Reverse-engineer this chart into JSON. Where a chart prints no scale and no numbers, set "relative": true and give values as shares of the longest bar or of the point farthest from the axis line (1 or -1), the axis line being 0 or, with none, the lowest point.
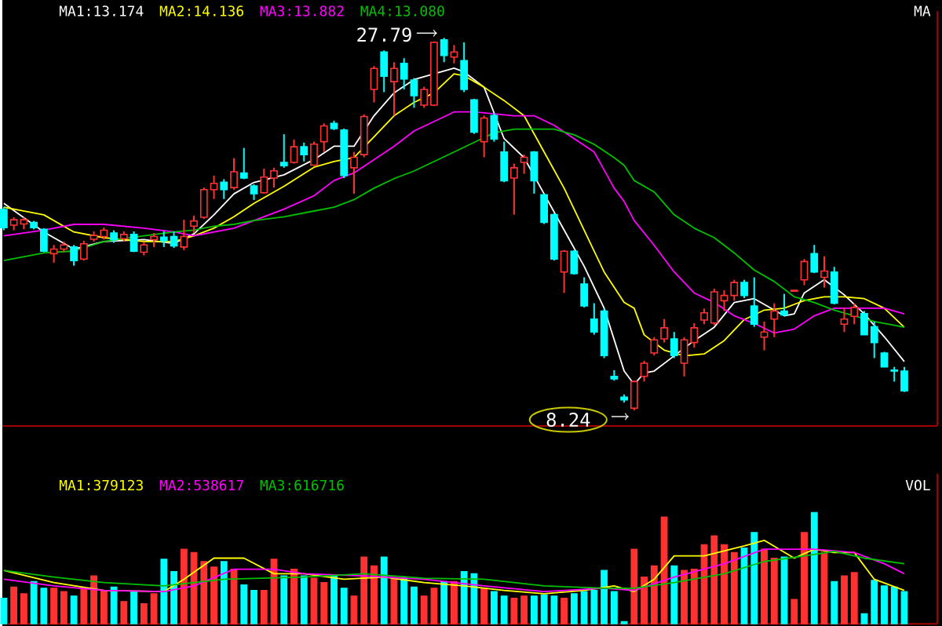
{
  "chart_data": [
    {
      "type": "candlestick",
      "legend": "top left",
      "categories": [
        null,
        null,
        null,
        null,
        null,
        null,
        null,
        null,
        null,
        null,
        null,
        null,
        null,
        null,
        null,
        null,
        null,
        null,
        null,
        null,
        null,
        null,
        null,
        null,
        null,
        null,
        null,
        null,
        null,
        null,
        null,
        null,
        null,
        null,
        null,
        null,
        null,
        null,
        null,
        null,
        null,
        null,
        null,
        null,
        null,
        null,
        null,
        null,
        null,
        null,
        null,
        null,
        null,
        null,
        null,
        null,
        null,
        null,
        null,
        null,
        null,
        null,
        null,
        null,
        null,
        null,
        null,
        null,
        null,
        null,
        null,
        null,
        null,
        null,
        null,
        null,
        null,
        null,
        null,
        null,
        null,
        null,
        null,
        null,
        null,
        null,
        null,
        null,
        null,
        null,
        null
      ],
      "ohlc": [
        [
          18.78,
          18.92,
          17.69,
          17.83
        ],
        [
          17.96,
          18.37,
          17.69,
          18.24
        ],
        [
          18.02,
          18.37,
          17.74,
          18.24
        ],
        [
          18.1,
          18.18,
          17.74,
          17.83
        ],
        [
          17.74,
          17.8,
          16.54,
          16.59
        ],
        [
          16.46,
          16.92,
          15.99,
          16.7
        ],
        [
          16.7,
          17.09,
          16.54,
          16.92
        ],
        [
          16.81,
          16.92,
          15.83,
          16.1
        ],
        [
          16.18,
          17.14,
          16.1,
          16.98
        ],
        [
          17.22,
          17.63,
          17.09,
          17.42
        ],
        [
          17.36,
          17.83,
          17.2,
          17.69
        ],
        [
          17.55,
          17.69,
          17.03,
          17.2
        ],
        [
          17.25,
          17.63,
          17.09,
          17.47
        ],
        [
          17.47,
          17.63,
          16.54,
          16.59
        ],
        [
          16.54,
          17.09,
          16.37,
          16.92
        ],
        [
          17.2,
          17.55,
          16.81,
          17.36
        ],
        [
          17.33,
          17.63,
          16.81,
          17.14
        ],
        [
          17.36,
          17.63,
          16.76,
          16.87
        ],
        [
          16.81,
          18.24,
          16.65,
          17.36
        ],
        [
          17.91,
          18.46,
          17.55,
          18.18
        ],
        [
          18.37,
          19.93,
          18.29,
          19.82
        ],
        [
          19.82,
          20.56,
          19.33,
          20.15
        ],
        [
          20.21,
          20.37,
          19.33,
          19.82
        ],
        [
          19.93,
          21.47,
          19.82,
          20.76
        ],
        [
          20.7,
          22.01,
          20.37,
          20.43
        ],
        [
          20.02,
          20.1,
          19.28,
          19.61
        ],
        [
          19.66,
          20.92,
          19.61,
          20.48
        ],
        [
          20.43,
          20.97,
          19.93,
          20.81
        ],
        [
          21.25,
          22.73,
          20.97,
          21.08
        ],
        [
          21.25,
          22.45,
          21.19,
          22.07
        ],
        [
          22.07,
          22.29,
          21.3,
          21.66
        ],
        [
          21.11,
          22.34,
          21.08,
          22.21
        ],
        [
          22.34,
          23.3,
          21.8,
          23.17
        ],
        [
          23.3,
          23.44,
          22.95,
          23.03
        ],
        [
          22.95,
          23.03,
          20.43,
          20.56
        ],
        [
          20.97,
          21.8,
          19.61,
          21.52
        ],
        [
          21.66,
          23.77,
          21.52,
          23.66
        ],
        [
          25.08,
          26.31,
          24.4,
          26.18
        ],
        [
          27.05,
          27.13,
          24.94,
          25.77
        ],
        [
          25.49,
          26.51,
          23.71,
          26.18
        ],
        [
          26.45,
          26.72,
          25.08,
          25.63
        ],
        [
          25.57,
          25.68,
          24.12,
          24.75
        ],
        [
          24.26,
          25.22,
          24.12,
          25.08
        ],
        [
          24.26,
          27.6,
          24.21,
          27.55
        ],
        [
          27.68,
          27.79,
          26.51,
          26.86
        ],
        [
          26.78,
          27.41,
          26.45,
          27.05
        ],
        [
          26.59,
          27.55,
          24.94,
          25.08
        ],
        [
          24.53,
          24.59,
          22.75,
          22.84
        ],
        [
          22.34,
          23.71,
          21.52,
          23.58
        ],
        [
          23.71,
          23.85,
          22.34,
          22.48
        ],
        [
          21.8,
          22.34,
          20.21,
          20.29
        ],
        [
          20.43,
          21.19,
          18.51,
          20.97
        ],
        [
          21.25,
          21.66,
          20.65,
          21.52
        ],
        [
          21.8,
          21.85,
          19.61,
          20.29
        ],
        [
          19.55,
          19.61,
          18.02,
          18.1
        ],
        [
          18.51,
          18.57,
          16.1,
          16.18
        ],
        [
          15.5,
          16.65,
          14.4,
          16.59
        ],
        [
          16.59,
          16.65,
          15.36,
          15.42
        ],
        [
          14.87,
          15.22,
          13.64,
          13.72
        ],
        [
          13.03,
          13.86,
          12.21,
          12.35
        ],
        [
          13.45,
          13.58,
          10.98,
          11.12
        ],
        [
          10.02,
          10.35,
          9.8,
          9.89
        ],
        [
          8.93,
          9.07,
          8.65,
          8.79
        ],
        [
          8.35,
          9.8,
          8.24,
          9.75
        ],
        [
          10.02,
          10.84,
          9.75,
          10.71
        ],
        [
          11.25,
          12.08,
          11.12,
          11.94
        ],
        [
          11.99,
          13.03,
          11.8,
          12.57
        ],
        [
          11.99,
          12.35,
          10.98,
          11.12
        ],
        [
          10.71,
          12.08,
          10.02,
          11.94
        ],
        [
          11.8,
          12.82,
          11.53,
          12.57
        ],
        [
          12.98,
          13.58,
          12.76,
          13.36
        ],
        [
          12.82,
          14.62,
          12.71,
          14.46
        ],
        [
          13.99,
          14.54,
          13.45,
          14.27
        ],
        [
          14.27,
          15.09,
          13.99,
          14.95
        ],
        [
          14.95,
          15.09,
          14.13,
          14.27
        ],
        [
          13.72,
          15.22,
          12.62,
          12.76
        ],
        [
          12.08,
          12.9,
          11.39,
          12.35
        ],
        [
          13.03,
          13.86,
          12.08,
          13.45
        ],
        [
          13.45,
          14.35,
          13.17,
          13.25
        ],
        [
          14.49,
          14.56,
          14.47,
          14.54
        ],
        [
          15.09,
          16.18,
          14.81,
          16.05
        ],
        [
          16.46,
          16.92,
          15.44,
          15.5
        ],
        [
          15.22,
          16.32,
          14.68,
          15.55
        ],
        [
          15.5,
          15.77,
          13.8,
          13.86
        ],
        [
          12.76,
          13.64,
          12.35,
          13.03
        ],
        [
          13.17,
          13.86,
          12.76,
          13.64
        ],
        [
          13.31,
          13.45,
          12.21,
          12.21
        ],
        [
          12.62,
          12.9,
          10.98,
          11.8
        ],
        [
          11.25,
          11.31,
          10.52,
          10.52
        ],
        [
          10.35,
          10.52,
          9.75,
          10.3
        ],
        [
          10.3,
          10.52,
          9.2,
          9.26
        ]
      ],
      "colors": [
        "#00ffff",
        "#ff3232",
        "#ff3232",
        "#00ffff",
        "#00ffff",
        "#ff3232",
        "#ff3232",
        "#00ffff",
        "#ff3232",
        "#ff3232",
        "#ff3232",
        "#00ffff",
        "#ff3232",
        "#00ffff",
        "#ff3232",
        "#ff3232",
        "#00ffff",
        "#00ffff",
        "#ff3232",
        "#ff3232",
        "#ff3232",
        "#ff3232",
        "#00ffff",
        "#ff3232",
        "#00ffff",
        "#00ffff",
        "#ff3232",
        "#ff3232",
        "#00ffff",
        "#ff3232",
        "#00ffff",
        "#ff3232",
        "#ff3232",
        "#00ffff",
        "#00ffff",
        "#ff3232",
        "#ff3232",
        "#ff3232",
        "#00ffff",
        "#ff3232",
        "#00ffff",
        "#00ffff",
        "#ff3232",
        "#ff3232",
        "#00ffff",
        "#ff3232",
        "#00ffff",
        "#00ffff",
        "#ff3232",
        "#00ffff",
        "#00ffff",
        "#ff3232",
        "#ff3232",
        "#00ffff",
        "#00ffff",
        "#00ffff",
        "#ff3232",
        "#00ffff",
        "#00ffff",
        "#00ffff",
        "#00ffff",
        "#00ffff",
        "#00ffff",
        "#ff3232",
        "#ff3232",
        "#ff3232",
        "#ff3232",
        "#00ffff",
        "#ff3232",
        "#ff3232",
        "#ff3232",
        "#ff3232",
        "#ff3232",
        "#ff3232",
        "#00ffff",
        "#00ffff",
        "#ff3232",
        "#ff3232",
        "#00ffff",
        "#ff3232",
        "#ff3232",
        "#00ffff",
        "#ff3232",
        "#00ffff",
        "#ff3232",
        "#ff3232",
        "#00ffff",
        "#00ffff",
        "#00ffff",
        "#00ffff",
        "#00ffff"
      ],
      "series": [
        {
          "type": "line",
          "name": "MA1:13.174",
          "color": "#ffffff",
          "values": [
            19.1,
            null,
            null,
            null,
            17.6,
            null,
            null,
            16.7,
            null,
            null,
            17.1,
            null,
            null,
            null,
            17.2,
            null,
            null,
            17.0,
            null,
            17.5,
            null,
            18.5,
            null,
            19.6,
            null,
            20.2,
            null,
            null,
            20.6,
            null,
            null,
            21.4,
            null,
            22.1,
            null,
            22.1,
            null,
            23.7,
            null,
            24.9,
            null,
            25.6,
            null,
            25.9,
            null,
            26.2,
            26.0,
            null,
            25.2,
            null,
            22.5,
            null,
            21.5,
            null,
            19.6,
            null,
            17.7,
            null,
            15.8,
            null,
            13.6,
            null,
            10.3,
            9.6,
            10.2,
            10.3,
            null,
            11.1,
            null,
            11.9,
            null,
            12.6,
            null,
            13.9,
            null,
            14.1,
            null,
            13.5,
            13.2,
            13.3,
            14.4,
            null,
            15.1,
            null,
            14.3,
            null,
            13.3,
            null,
            12.1,
            null,
            10.8
          ]
        },
        {
          "type": "line",
          "name": "MA2:14.136",
          "color": "#ffff00",
          "values": [
            18.9,
            null,
            null,
            null,
            18.5,
            null,
            null,
            17.6,
            null,
            null,
            17.3,
            null,
            null,
            null,
            17.1,
            null,
            null,
            17.1,
            null,
            17.4,
            null,
            17.8,
            null,
            18.4,
            null,
            19.1,
            null,
            null,
            20.0,
            null,
            null,
            21.0,
            null,
            21.3,
            null,
            21.5,
            null,
            22.6,
            null,
            23.7,
            null,
            24.4,
            null,
            24.9,
            null,
            25.9,
            25.8,
            null,
            25.2,
            null,
            24.5,
            null,
            23.7,
            null,
            21.8,
            null,
            19.9,
            null,
            17.7,
            null,
            15.5,
            null,
            13.9,
            13.6,
            12.2,
            null,
            11.4,
            null,
            11.1,
            null,
            11.2,
            null,
            11.9,
            null,
            13.0,
            null,
            13.5,
            null,
            13.6,
            null,
            14.0,
            null,
            14.2,
            null,
            14.2,
            null,
            14.1,
            null,
            13.6,
            null,
            12.6
          ]
        },
        {
          "type": "line",
          "name": "MA3:13.882",
          "color": "#ff00ff",
          "values": [
            17.4,
            null,
            null,
            null,
            17.7,
            null,
            null,
            18.0,
            null,
            null,
            18.0,
            null,
            null,
            null,
            17.8,
            null,
            null,
            17.6,
            null,
            17.4,
            null,
            17.6,
            null,
            17.8,
            null,
            18.2,
            null,
            null,
            18.8,
            null,
            null,
            19.5,
            null,
            20.3,
            null,
            20.7,
            null,
            21.4,
            null,
            22.1,
            null,
            22.9,
            null,
            23.4,
            null,
            23.9,
            null,
            23.9,
            null,
            23.8,
            null,
            23.7,
            null,
            23.7,
            null,
            23.2,
            null,
            22.5,
            null,
            21.8,
            null,
            19.9,
            19.2,
            18.2,
            null,
            16.9,
            null,
            15.5,
            null,
            14.4,
            null,
            13.9,
            null,
            13.2,
            null,
            12.8,
            null,
            12.3,
            null,
            12.5,
            null,
            13.2,
            null,
            13.6,
            null,
            13.6,
            null,
            13.6,
            13.6,
            null,
            13.3
          ]
        },
        {
          "type": "line",
          "name": "MA4:13.080",
          "color": "#00c000",
          "values": [
            16.1,
            null,
            null,
            null,
            16.5,
            null,
            null,
            16.6,
            null,
            null,
            17.1,
            null,
            null,
            null,
            17.4,
            null,
            null,
            17.6,
            null,
            17.7,
            null,
            17.9,
            null,
            18.0,
            null,
            18.2,
            null,
            null,
            18.4,
            null,
            null,
            18.7,
            null,
            18.9,
            null,
            19.3,
            null,
            19.9,
            null,
            20.4,
            null,
            20.8,
            null,
            21.3,
            null,
            21.8,
            null,
            22.3,
            null,
            22.8,
            null,
            23.0,
            null,
            23.0,
            null,
            23.0,
            null,
            22.7,
            null,
            22.2,
            null,
            21.5,
            21.1,
            20.3,
            null,
            19.7,
            null,
            18.5,
            null,
            17.8,
            null,
            17.3,
            null,
            16.5,
            null,
            15.6,
            null,
            15.0,
            null,
            14.2,
            null,
            13.9,
            null,
            13.5,
            null,
            13.2,
            null,
            12.9,
            null,
            12.7,
            12.6
          ]
        }
      ],
      "annotations": [
        "27.79",
        "8.24",
        "MA"
      ]
    },
    {
      "type": "bar",
      "relative": true,
      "legend": "top left",
      "categories": [
        null,
        null,
        null,
        null,
        null,
        null,
        null,
        null,
        null,
        null,
        null,
        null,
        null,
        null,
        null,
        null,
        null,
        null,
        null,
        null,
        null,
        null,
        null,
        null,
        null,
        null,
        null,
        null,
        null,
        null,
        null,
        null,
        null,
        null,
        null,
        null,
        null,
        null,
        null,
        null,
        null,
        null,
        null,
        null,
        null,
        null,
        null,
        null,
        null,
        null,
        null,
        null,
        null,
        null,
        null,
        null,
        null,
        null,
        null,
        null,
        null,
        null,
        null,
        null,
        null,
        null,
        null,
        null,
        null,
        null,
        null,
        null,
        null,
        null,
        null,
        null,
        null,
        null,
        null,
        null,
        null,
        null,
        null,
        null,
        null,
        null,
        null,
        null,
        null,
        null,
        null
      ],
      "series": [
        {
          "type": "bar",
          "values": [
            0.23,
            0.33,
            0.27,
            0.38,
            0.32,
            0.32,
            0.29,
            0.25,
            0.32,
            0.43,
            0.3,
            0.33,
            0.2,
            0.29,
            0.18,
            0.27,
            0.58,
            0.47,
            0.67,
            0.64,
            0.56,
            0.51,
            0.56,
            0.49,
            0.35,
            0.3,
            0.3,
            0.58,
            0.43,
            0.49,
            0.43,
            0.41,
            0.37,
            0.43,
            0.32,
            0.25,
            0.6,
            0.52,
            0.6,
            0.4,
            0.41,
            0.33,
            0.25,
            0.32,
            0.38,
            0.38,
            0.47,
            0.45,
            0.32,
            0.29,
            0.25,
            0.23,
            0.25,
            0.25,
            0.26,
            0.25,
            0.23,
            0.27,
            0.29,
            0.3,
            0.48,
            0.29,
            0.02,
            0.67,
            0.42,
            0.52,
            0.96,
            0.52,
            0.48,
            0.49,
            0.71,
            0.79,
            0.71,
            0.64,
            0.68,
            0.82,
            0.67,
            0.59,
            0.6,
            0.22,
            0.82,
            1,
            0.64,
            0.38,
            0.43,
            0.46,
            0.09,
            0.39,
            0.34,
            0.33,
            0.29
          ],
          "colors": [
            "#00ffff",
            "#ff3232",
            "#ff3232",
            "#00ffff",
            "#00ffff",
            "#ff3232",
            "#ff3232",
            "#00ffff",
            "#ff3232",
            "#ff3232",
            "#ff3232",
            "#00ffff",
            "#ff3232",
            "#00ffff",
            "#ff3232",
            "#ff3232",
            "#00ffff",
            "#00ffff",
            "#ff3232",
            "#ff3232",
            "#ff3232",
            "#ff3232",
            "#00ffff",
            "#ff3232",
            "#00ffff",
            "#00ffff",
            "#ff3232",
            "#ff3232",
            "#00ffff",
            "#ff3232",
            "#00ffff",
            "#ff3232",
            "#ff3232",
            "#00ffff",
            "#00ffff",
            "#ff3232",
            "#ff3232",
            "#ff3232",
            "#00ffff",
            "#ff3232",
            "#00ffff",
            "#00ffff",
            "#ff3232",
            "#ff3232",
            "#00ffff",
            "#ff3232",
            "#00ffff",
            "#00ffff",
            "#ff3232",
            "#00ffff",
            "#00ffff",
            "#ff3232",
            "#ff3232",
            "#00ffff",
            "#00ffff",
            "#00ffff",
            "#ff3232",
            "#00ffff",
            "#00ffff",
            "#00ffff",
            "#00ffff",
            "#00ffff",
            "#00ffff",
            "#ff3232",
            "#ff3232",
            "#ff3232",
            "#ff3232",
            "#00ffff",
            "#ff3232",
            "#ff3232",
            "#ff3232",
            "#ff3232",
            "#ff3232",
            "#ff3232",
            "#00ffff",
            "#00ffff",
            "#ff3232",
            "#ff3232",
            "#00ffff",
            "#ff3232",
            "#ff3232",
            "#00ffff",
            "#ff3232",
            "#00ffff",
            "#ff3232",
            "#ff3232",
            "#00ffff",
            "#00ffff",
            "#00ffff",
            "#00ffff",
            "#00ffff"
          ]
        },
        {
          "type": "line",
          "name": "MA1:379123",
          "color": "#ffff00",
          "values": [
            0.48,
            null,
            null,
            null,
            null,
            0.37,
            null,
            null,
            null,
            null,
            0.3,
            null,
            null,
            null,
            null,
            null,
            0.29,
            null,
            0.4,
            null,
            null,
            0.59,
            null,
            null,
            0.59,
            null,
            null,
            0.45,
            null,
            null,
            0.45,
            null,
            null,
            null,
            0.4,
            null,
            null,
            null,
            0.42,
            null,
            null,
            null,
            0.37,
            null,
            null,
            null,
            0.34,
            null,
            null,
            null,
            0.3,
            null,
            null,
            null,
            0.27,
            null,
            null,
            null,
            0.3,
            null,
            null,
            0.34,
            null,
            0.29,
            null,
            0.4,
            null,
            0.61,
            null,
            null,
            0.61,
            null,
            null,
            null,
            0.7,
            null,
            0.75,
            null,
            null,
            0.59,
            null,
            0.67,
            null,
            0.64,
            null,
            0.64,
            null,
            0.4,
            null,
            null,
            0.3
          ]
        },
        {
          "type": "line",
          "name": "MA2:538617",
          "color": "#ff00ff",
          "values": [
            0.4,
            null,
            null,
            null,
            null,
            0.34,
            null,
            null,
            null,
            null,
            0.3,
            null,
            null,
            null,
            null,
            null,
            0.29,
            null,
            null,
            0.34,
            null,
            null,
            null,
            0.49,
            null,
            null,
            null,
            0.49,
            null,
            null,
            0.45,
            null,
            null,
            null,
            null,
            null,
            0.43,
            null,
            null,
            null,
            null,
            null,
            0.4,
            null,
            null,
            null,
            null,
            null,
            0.34,
            null,
            null,
            null,
            null,
            null,
            0.29,
            null,
            null,
            null,
            null,
            null,
            0.32,
            null,
            null,
            0.3,
            null,
            null,
            null,
            0.42,
            null,
            null,
            null,
            null,
            0.54,
            null,
            null,
            null,
            0.67,
            null,
            null,
            null,
            null,
            0.67,
            null,
            null,
            null,
            0.64,
            null,
            null,
            0.54,
            null,
            0.45
          ]
        },
        {
          "type": "line",
          "name": "MA3:616716",
          "color": "#00c000",
          "values": [
            0.48,
            null,
            null,
            null,
            null,
            0.42,
            null,
            null,
            null,
            null,
            0.37,
            null,
            null,
            null,
            null,
            null,
            0.34,
            null,
            null,
            null,
            null,
            null,
            0.4,
            null,
            null,
            null,
            null,
            null,
            null,
            null,
            0.42,
            null,
            null,
            null,
            null,
            null,
            0.45,
            null,
            null,
            null,
            null,
            null,
            0.41,
            null,
            null,
            null,
            null,
            null,
            0.4,
            null,
            null,
            null,
            null,
            null,
            0.34,
            null,
            null,
            null,
            null,
            null,
            0.32,
            null,
            null,
            0.32,
            null,
            null,
            null,
            0.37,
            null,
            null,
            null,
            null,
            0.45,
            null,
            null,
            null,
            0.56,
            null,
            null,
            null,
            0.61,
            null,
            null,
            0.65,
            null,
            null,
            0.59,
            null,
            null,
            null,
            0.54
          ]
        }
      ],
      "annotations": [
        "VOL"
      ]
    }
  ]
}
